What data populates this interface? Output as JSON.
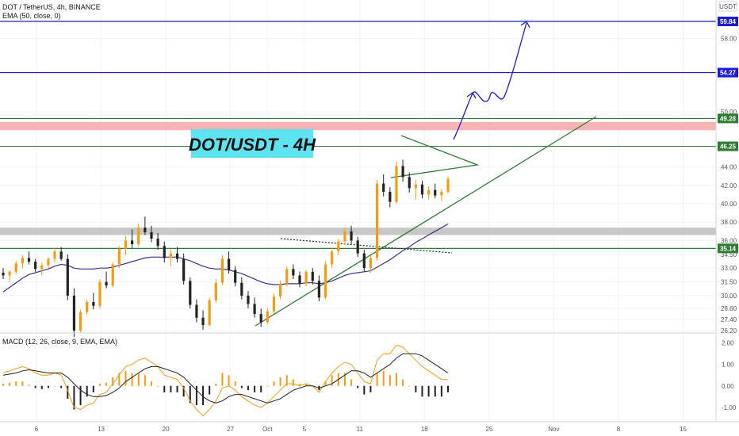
{
  "header": {
    "symbol_line": "DOT / TetherUS, 4h, BINANCE",
    "indicator_line": "EMA (50, close, 0)",
    "currency": "USDT"
  },
  "title_box": {
    "text": "DOT/USDT - 4H",
    "color": "#5ee3f0"
  },
  "macd_label": "MACD (12, 26, close, 9, EMA, EMA)",
  "chart_data": {
    "type": "candlestick",
    "price_axis": {
      "range": [
        26.0,
        62.5
      ],
      "ticks": [
        "58.00",
        "54.27",
        "50.00",
        "49.28",
        "46.25",
        "44.00",
        "42.00",
        "40.00",
        "38.00",
        "36.00",
        "35.14",
        "34.50",
        "33.00",
        "31.50",
        "30.00",
        "28.60",
        "27.40",
        "26.20"
      ]
    },
    "price_tick_values": [
      58.0,
      54.27,
      50.0,
      49.28,
      46.25,
      44.0,
      42.0,
      40.0,
      38.0,
      36.0,
      35.14,
      34.5,
      33.0,
      31.5,
      30.0,
      28.6,
      27.4,
      26.2
    ],
    "time_axis": {
      "labels": [
        "6",
        "13",
        "20",
        "27",
        "Oct",
        "5",
        "11",
        "18",
        "25",
        "Nov",
        "8",
        "15"
      ],
      "day_offsets": [
        0,
        7,
        14,
        21,
        25,
        29,
        35,
        42,
        49,
        56,
        63,
        70
      ]
    },
    "horizontal_levels": [
      {
        "price": 59.84,
        "label": "59.84",
        "color": "#1c1cd6"
      },
      {
        "price": 54.27,
        "label": "54.27",
        "color": "#1c1cd6"
      },
      {
        "price": 49.28,
        "label": "49.28",
        "color": "#2e7d32"
      },
      {
        "price": 46.25,
        "label": "46.25",
        "color": "#2e7d32"
      },
      {
        "price": 35.14,
        "label": "35.14",
        "color": "#2e7d32"
      }
    ],
    "zones": [
      {
        "from": 48.0,
        "to": 48.9,
        "color": "#f8b4b4"
      },
      {
        "from": 36.6,
        "to": 37.4,
        "color": "#c7c7c7"
      }
    ],
    "candles_ohlc": [
      [
        32.5,
        33.0,
        31.8,
        32.2
      ],
      [
        32.2,
        32.8,
        31.5,
        32.6
      ],
      [
        32.6,
        33.8,
        32.3,
        33.5
      ],
      [
        33.5,
        34.4,
        33.0,
        34.1
      ],
      [
        34.1,
        34.8,
        33.4,
        33.7
      ],
      [
        33.7,
        34.0,
        32.6,
        32.9
      ],
      [
        32.9,
        33.6,
        32.2,
        33.3
      ],
      [
        33.3,
        34.2,
        33.0,
        34.0
      ],
      [
        34.0,
        35.2,
        33.6,
        34.8
      ],
      [
        34.8,
        35.3,
        33.8,
        34.0
      ],
      [
        34.0,
        34.5,
        29.5,
        30.0
      ],
      [
        30.0,
        30.8,
        25.5,
        26.2
      ],
      [
        26.2,
        28.5,
        26.0,
        28.2
      ],
      [
        28.2,
        29.6,
        27.9,
        29.3
      ],
      [
        29.3,
        30.3,
        28.5,
        28.9
      ],
      [
        28.9,
        31.8,
        28.6,
        31.5
      ],
      [
        31.5,
        32.6,
        30.8,
        31.1
      ],
      [
        31.1,
        33.6,
        30.9,
        33.4
      ],
      [
        33.4,
        35.4,
        33.0,
        35.1
      ],
      [
        35.1,
        36.5,
        34.4,
        36.0
      ],
      [
        36.0,
        37.2,
        35.2,
        35.6
      ],
      [
        35.6,
        37.8,
        35.3,
        37.4
      ],
      [
        37.4,
        38.6,
        36.6,
        36.9
      ],
      [
        36.9,
        37.6,
        35.8,
        36.2
      ],
      [
        36.2,
        36.8,
        35.0,
        35.4
      ],
      [
        35.4,
        35.9,
        33.6,
        34.1
      ],
      [
        34.1,
        35.0,
        33.2,
        34.6
      ],
      [
        34.6,
        35.3,
        33.6,
        34.0
      ],
      [
        34.0,
        34.6,
        31.2,
        31.6
      ],
      [
        31.6,
        32.0,
        28.6,
        29.0
      ],
      [
        29.0,
        29.6,
        27.1,
        27.6
      ],
      [
        27.6,
        28.4,
        26.3,
        26.8
      ],
      [
        26.8,
        29.8,
        26.6,
        29.5
      ],
      [
        29.5,
        31.8,
        29.2,
        31.4
      ],
      [
        31.4,
        34.4,
        31.1,
        34.0
      ],
      [
        34.0,
        34.8,
        32.4,
        32.8
      ],
      [
        32.8,
        33.2,
        31.0,
        31.4
      ],
      [
        31.4,
        32.0,
        29.6,
        30.0
      ],
      [
        30.0,
        30.5,
        28.6,
        29.1
      ],
      [
        29.1,
        29.8,
        27.6,
        28.0
      ],
      [
        28.0,
        28.6,
        26.6,
        27.1
      ],
      [
        27.1,
        28.6,
        26.9,
        28.3
      ],
      [
        28.3,
        30.2,
        28.0,
        29.9
      ],
      [
        29.9,
        31.6,
        29.6,
        31.3
      ],
      [
        31.3,
        33.2,
        31.0,
        32.9
      ],
      [
        32.9,
        33.4,
        31.8,
        32.2
      ],
      [
        32.2,
        32.6,
        30.9,
        31.3
      ],
      [
        31.3,
        32.8,
        31.0,
        32.6
      ],
      [
        32.6,
        33.0,
        31.2,
        31.6
      ],
      [
        31.6,
        32.2,
        29.4,
        29.8
      ],
      [
        29.8,
        33.8,
        29.6,
        33.4
      ],
      [
        33.4,
        35.2,
        33.0,
        34.8
      ],
      [
        34.8,
        36.2,
        34.4,
        35.9
      ],
      [
        35.9,
        37.4,
        35.6,
        37.0
      ],
      [
        37.0,
        37.6,
        35.6,
        36.0
      ],
      [
        36.0,
        36.4,
        34.2,
        34.6
      ],
      [
        34.6,
        35.0,
        32.6,
        33.0
      ],
      [
        33.0,
        34.4,
        32.5,
        34.1
      ],
      [
        34.1,
        42.6,
        33.8,
        42.2
      ],
      [
        42.2,
        43.2,
        40.8,
        41.3
      ],
      [
        41.3,
        41.8,
        39.6,
        40.2
      ],
      [
        40.2,
        44.6,
        40.0,
        44.1
      ],
      [
        44.1,
        44.8,
        42.4,
        42.9
      ],
      [
        42.9,
        43.4,
        41.2,
        41.7
      ],
      [
        41.7,
        42.6,
        40.4,
        42.1
      ],
      [
        42.1,
        42.5,
        40.6,
        41.0
      ],
      [
        41.0,
        41.9,
        40.4,
        41.5
      ],
      [
        41.5,
        42.2,
        40.6,
        40.9
      ],
      [
        40.9,
        41.6,
        40.3,
        41.3
      ],
      [
        41.3,
        43.0,
        41.1,
        42.7
      ]
    ],
    "ema50": [
      30.4,
      30.9,
      31.4,
      31.9,
      32.3,
      32.5,
      32.7,
      32.9,
      33.2,
      33.4,
      33.3,
      33.0,
      32.9,
      32.9,
      32.9,
      33.0,
      33.0,
      33.1,
      33.3,
      33.5,
      33.7,
      33.9,
      34.1,
      34.2,
      34.2,
      34.2,
      34.2,
      34.2,
      34.0,
      33.8,
      33.5,
      33.2,
      33.0,
      32.9,
      32.9,
      32.8,
      32.6,
      32.4,
      32.1,
      31.8,
      31.5,
      31.3,
      31.2,
      31.2,
      31.3,
      31.3,
      31.3,
      31.4,
      31.4,
      31.3,
      31.4,
      31.6,
      31.9,
      32.2,
      32.4,
      32.5,
      32.6,
      32.7,
      33.1,
      33.5,
      33.9,
      34.4,
      34.9,
      35.3,
      35.8,
      36.2,
      36.6,
      37.0,
      37.4,
      37.8
    ],
    "macd": {
      "axis_ticks": [
        "2.00",
        "1.00",
        "0.00",
        "-1.00"
      ],
      "tick_values": [
        2.0,
        1.0,
        0.0,
        -1.0
      ],
      "range": [
        -1.6,
        2.1
      ],
      "macd_line": [
        0.6,
        0.7,
        0.8,
        0.9,
        0.8,
        0.6,
        0.5,
        0.5,
        0.6,
        0.5,
        -0.2,
        -1.0,
        -1.1,
        -0.9,
        -0.8,
        -0.4,
        -0.3,
        0.1,
        0.5,
        0.9,
        1.0,
        1.2,
        1.3,
        1.1,
        0.9,
        0.5,
        0.4,
        0.3,
        -0.1,
        -0.7,
        -1.1,
        -1.4,
        -1.1,
        -0.7,
        -0.1,
        0.0,
        -0.2,
        -0.5,
        -0.7,
        -0.9,
        -1.0,
        -0.8,
        -0.5,
        -0.2,
        0.1,
        0.1,
        0.0,
        0.1,
        0.0,
        -0.3,
        0.2,
        0.6,
        0.9,
        1.1,
        1.0,
        0.6,
        0.2,
        0.1,
        1.2,
        1.5,
        1.5,
        1.9,
        1.8,
        1.5,
        1.2,
        0.9,
        0.7,
        0.5,
        0.3,
        0.3
      ],
      "signal_line": [
        0.5,
        0.55,
        0.6,
        0.7,
        0.75,
        0.7,
        0.65,
        0.6,
        0.6,
        0.6,
        0.4,
        0.1,
        -0.2,
        -0.4,
        -0.5,
        -0.5,
        -0.45,
        -0.3,
        -0.1,
        0.2,
        0.4,
        0.6,
        0.8,
        0.9,
        0.9,
        0.8,
        0.7,
        0.6,
        0.4,
        0.1,
        -0.2,
        -0.5,
        -0.7,
        -0.8,
        -0.7,
        -0.5,
        -0.4,
        -0.4,
        -0.5,
        -0.6,
        -0.7,
        -0.8,
        -0.7,
        -0.6,
        -0.4,
        -0.2,
        -0.1,
        0.0,
        0.0,
        -0.1,
        0.0,
        0.1,
        0.3,
        0.5,
        0.7,
        0.7,
        0.6,
        0.4,
        0.6,
        0.8,
        1.0,
        1.3,
        1.5,
        1.5,
        1.5,
        1.4,
        1.2,
        1.0,
        0.8,
        0.6
      ]
    }
  }
}
